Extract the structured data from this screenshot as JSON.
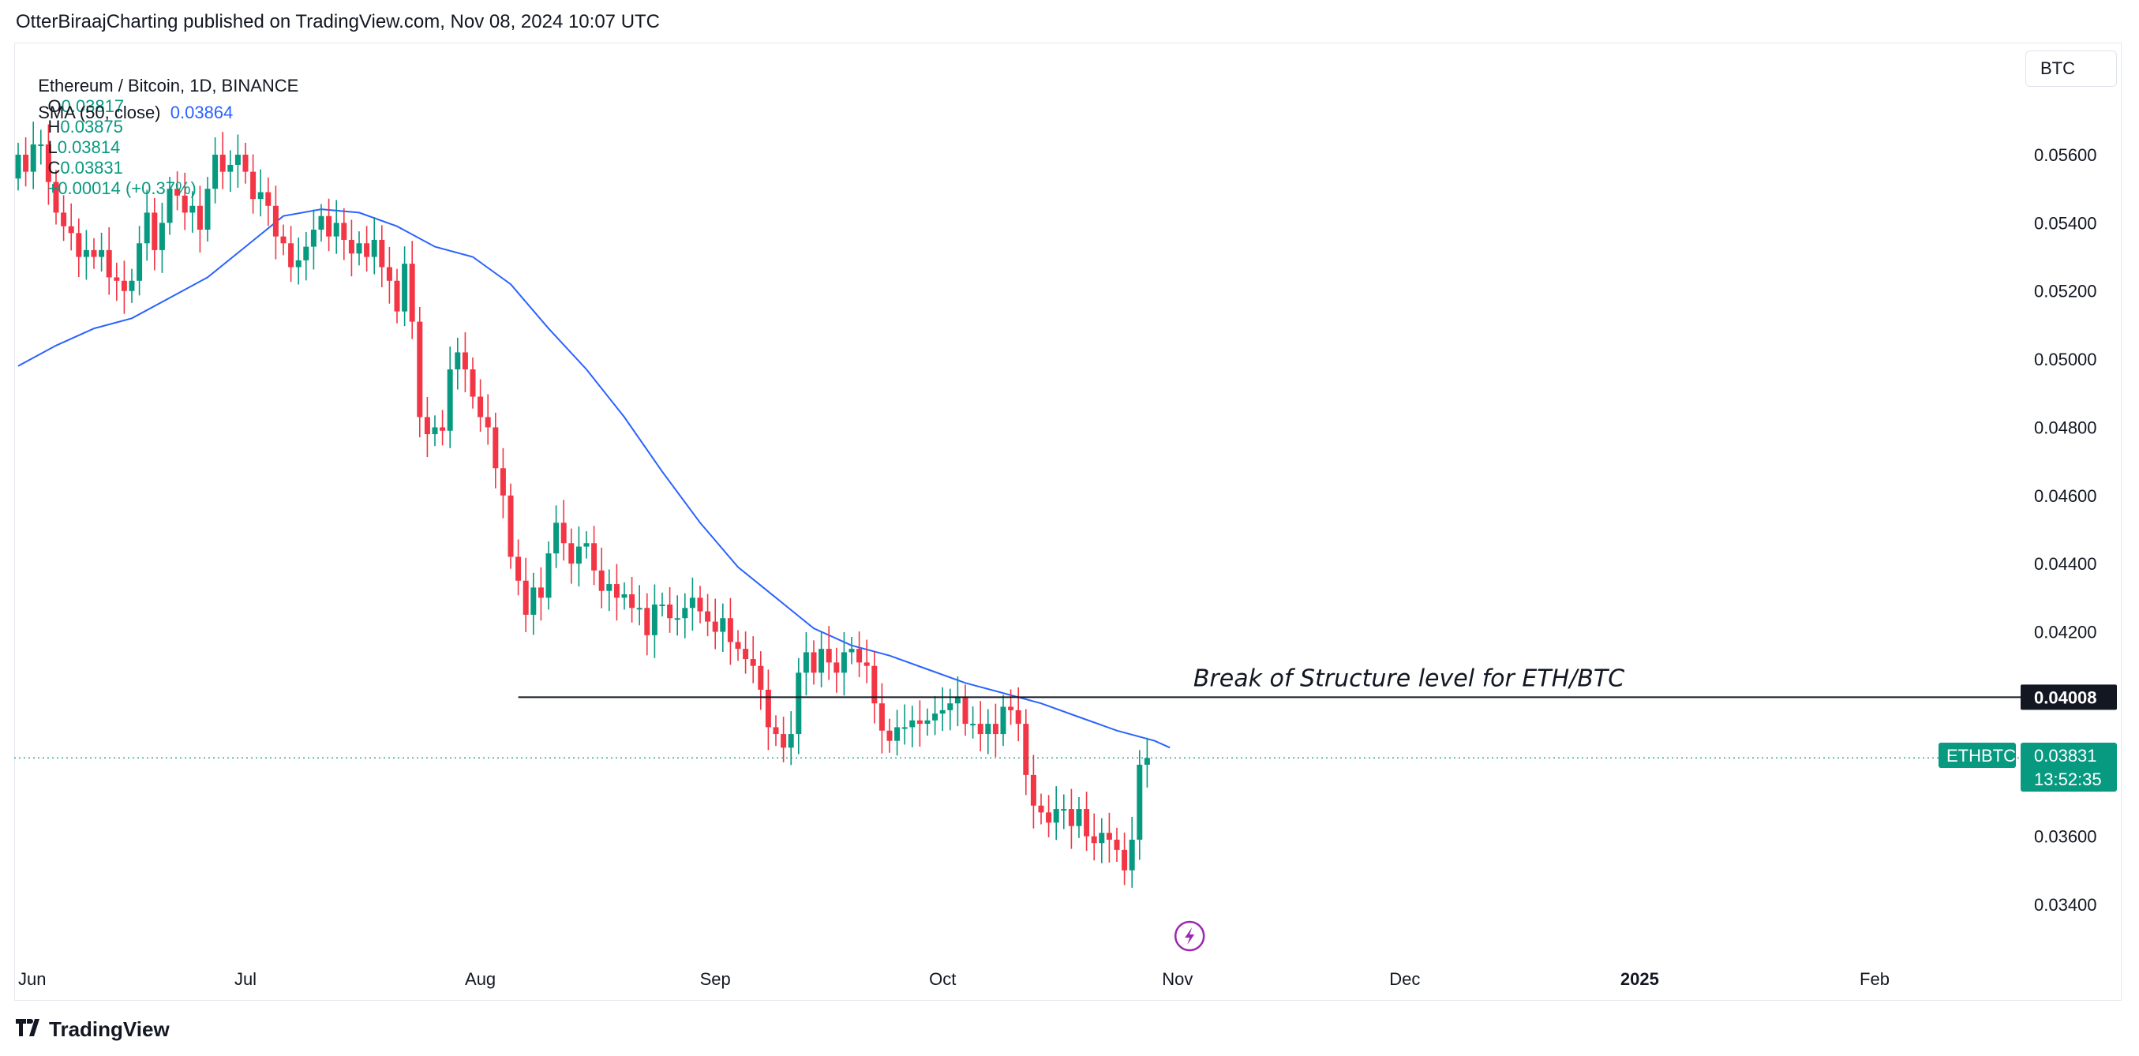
{
  "publication": {
    "text": "OtterBiraajCharting published on TradingView.com, Nov 08, 2024 10:07 UTC"
  },
  "legend": {
    "symbol": "Ethereum / Bitcoin, 1D, BINANCE",
    "open_label": "O",
    "open": "0.03817",
    "high_label": "H",
    "high": "0.03875",
    "low_label": "L",
    "low": "0.03814",
    "close_label": "C",
    "close": "0.03831",
    "change": "+0.00014 (+0.37%)",
    "sma_label": "SMA (50, close)",
    "sma_value": "0.03864"
  },
  "currency_button": "BTC",
  "footer": {
    "logo_text": "TradingView"
  },
  "colors": {
    "up": "#089981",
    "down": "#f23645",
    "sma": "#2962ff",
    "level_line": "#131722",
    "price_badge": "#089981",
    "level_badge": "#131722",
    "flash_icon": "#9c27b0"
  },
  "chart_data": {
    "type": "candlestick",
    "symbol": "ETHBTC",
    "interval": "1D",
    "y_range": [
      0.0331,
      0.0567
    ],
    "y_ticks": [
      "0.05600",
      "0.05400",
      "0.05200",
      "0.05000",
      "0.04800",
      "0.04600",
      "0.04400",
      "0.04200",
      "0.03600",
      "0.03400"
    ],
    "x_ticks": [
      {
        "label": "Jun",
        "day": 0
      },
      {
        "label": "Jul",
        "day": 30
      },
      {
        "label": "Aug",
        "day": 61
      },
      {
        "label": "Sep",
        "day": 92
      },
      {
        "label": "Oct",
        "day": 122
      },
      {
        "label": "Nov",
        "day": 153
      },
      {
        "label": "Dec",
        "day": 183
      },
      {
        "label": "2025",
        "day": 214
      },
      {
        "label": "Feb",
        "day": 245
      }
    ],
    "x_range_days": [
      0,
      267
    ],
    "first_candle_day": 0,
    "closes": [
      0.056,
      0.0555,
      0.0563,
      0.0563,
      0.0552,
      0.0543,
      0.0539,
      0.0537,
      0.053,
      0.0532,
      0.053,
      0.0532,
      0.0524,
      0.0523,
      0.052,
      0.0523,
      0.0534,
      0.0543,
      0.0532,
      0.054,
      0.055,
      0.0548,
      0.0543,
      0.0545,
      0.0538,
      0.055,
      0.056,
      0.0555,
      0.0557,
      0.056,
      0.0555,
      0.0547,
      0.0549,
      0.0545,
      0.0536,
      0.0534,
      0.0527,
      0.0529,
      0.0533,
      0.0538,
      0.0542,
      0.0536,
      0.054,
      0.0535,
      0.0531,
      0.0534,
      0.053,
      0.0535,
      0.0527,
      0.0523,
      0.0514,
      0.0528,
      0.0511,
      0.0483,
      0.0478,
      0.048,
      0.0479,
      0.0497,
      0.0502,
      0.0497,
      0.0489,
      0.0483,
      0.048,
      0.0468,
      0.046,
      0.0442,
      0.0435,
      0.0425,
      0.0433,
      0.043,
      0.0443,
      0.0452,
      0.0446,
      0.044,
      0.0445,
      0.0446,
      0.0438,
      0.0432,
      0.0434,
      0.043,
      0.0431,
      0.0427,
      0.0427,
      0.0419,
      0.0428,
      0.0428,
      0.0424,
      0.0424,
      0.0427,
      0.043,
      0.0426,
      0.0423,
      0.042,
      0.0424,
      0.0417,
      0.0415,
      0.0412,
      0.041,
      0.0403,
      0.0392,
      0.039,
      0.0386,
      0.039,
      0.0408,
      0.0414,
      0.0408,
      0.0415,
      0.0411,
      0.0408,
      0.0414,
      0.0415,
      0.0411,
      0.041,
      0.0399,
      0.0391,
      0.0388,
      0.0392,
      0.0392,
      0.0394,
      0.0393,
      0.0394,
      0.0396,
      0.0397,
      0.0399,
      0.0401,
      0.0393,
      0.0393,
      0.039,
      0.0393,
      0.039,
      0.0398,
      0.0397,
      0.0393,
      0.0378,
      0.0369,
      0.0367,
      0.0364,
      0.0368,
      0.0368,
      0.0363,
      0.0368,
      0.036,
      0.0358,
      0.0361,
      0.0359,
      0.0356,
      0.035,
      0.0359,
      0.0381,
      0.0383
    ],
    "sma": {
      "name": "SMA (50, close)",
      "points": [
        [
          0,
          0.0498
        ],
        [
          5,
          0.0504
        ],
        [
          10,
          0.0509
        ],
        [
          15,
          0.0512
        ],
        [
          20,
          0.0518
        ],
        [
          25,
          0.0524
        ],
        [
          30,
          0.0533
        ],
        [
          35,
          0.0542
        ],
        [
          40,
          0.0544
        ],
        [
          45,
          0.0543
        ],
        [
          50,
          0.0539
        ],
        [
          55,
          0.0533
        ],
        [
          60,
          0.053
        ],
        [
          65,
          0.0522
        ],
        [
          70,
          0.0509
        ],
        [
          75,
          0.0497
        ],
        [
          80,
          0.0483
        ],
        [
          85,
          0.0467
        ],
        [
          90,
          0.0452
        ],
        [
          95,
          0.0439
        ],
        [
          100,
          0.043
        ],
        [
          105,
          0.0421
        ],
        [
          110,
          0.0416
        ],
        [
          115,
          0.0413
        ],
        [
          120,
          0.0409
        ],
        [
          125,
          0.0405
        ],
        [
          130,
          0.0402
        ],
        [
          135,
          0.0399
        ],
        [
          140,
          0.0395
        ],
        [
          145,
          0.0391
        ],
        [
          150,
          0.0388
        ],
        [
          152,
          0.0386
        ]
      ]
    },
    "price_label": {
      "ticker": "ETHBTC",
      "value": "0.03831",
      "countdown": "13:52:35"
    },
    "level": {
      "value": 0.04008,
      "label": "0.04008",
      "start_day": 66,
      "text": "Break of Structure level for ETH/BTC"
    },
    "flash_icon_day": 152,
    "grid": false
  }
}
